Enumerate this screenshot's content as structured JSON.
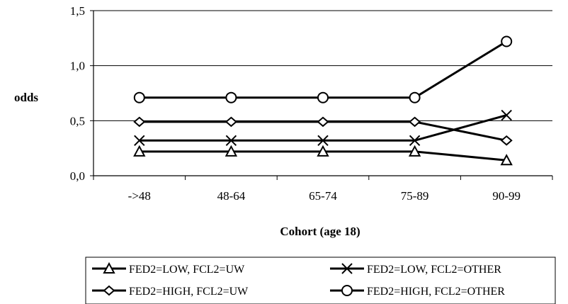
{
  "chart_data": {
    "type": "line",
    "categories": [
      "->48",
      "48-64",
      "65-74",
      "75-89",
      "90-99"
    ],
    "series": [
      {
        "name": "FED2=LOW, FCL2=UW",
        "marker": "triangle",
        "values": [
          0.22,
          0.22,
          0.22,
          0.22,
          0.14
        ]
      },
      {
        "name": "FED2=LOW, FCL2=OTHER",
        "marker": "x",
        "values": [
          0.32,
          0.32,
          0.32,
          0.32,
          0.55
        ]
      },
      {
        "name": "FED2=HIGH, FCL2=UW",
        "marker": "diamond",
        "values": [
          0.49,
          0.49,
          0.49,
          0.49,
          0.32
        ]
      },
      {
        "name": "FED2=HIGH, FCL2=OTHER",
        "marker": "circle",
        "values": [
          0.71,
          0.71,
          0.71,
          0.71,
          1.22
        ]
      }
    ],
    "title": "",
    "xlabel": "Cohort (age 18)",
    "ylabel": "odds",
    "ylim": [
      0,
      1.5
    ],
    "yticks": [
      "0,0",
      "0,5",
      "1,0",
      "1,5"
    ],
    "grid": true,
    "legend_position": "bottom"
  },
  "colors": {
    "line": "#000000",
    "grid": "#000000",
    "background": "#ffffff"
  }
}
